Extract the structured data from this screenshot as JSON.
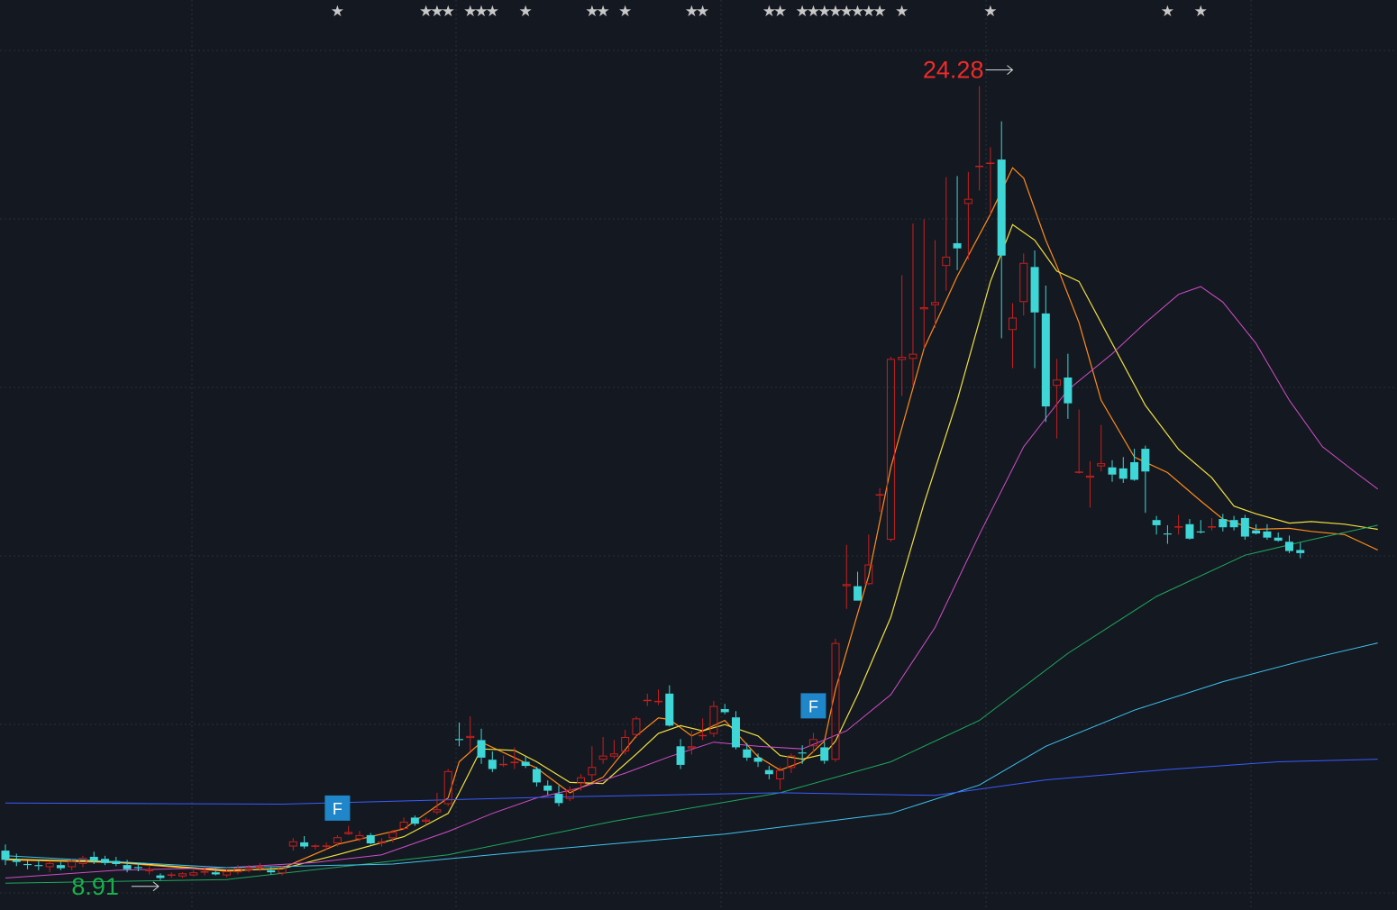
{
  "colors": {
    "background": "#141820",
    "grid": "#2a2f38",
    "up": "#c8201e",
    "down": "#3ed6d6",
    "star": "#c8c8c8",
    "high_label": "#ee2b2b",
    "low_label": "#19b04a",
    "marker_bg": "#1f86c9",
    "marker_text": "#ffffff",
    "ma5": "#ff8c1a",
    "ma10": "#f0e040",
    "ma20": "#d04ec8",
    "ma60": "#1ea85e",
    "ma120": "#3ec4f0",
    "ma250": "#3a5cff"
  },
  "labels": {
    "high": "24.28",
    "low": "8.91",
    "marker": "F"
  },
  "chart_data": {
    "type": "candlestick",
    "y_range": [
      8.4,
      25.6
    ],
    "high_annotation": {
      "index": 91,
      "value": 24.28,
      "text": "24.28"
    },
    "low_annotation": {
      "index": 14,
      "value": 8.91,
      "text": "8.91"
    },
    "event_markers": [
      {
        "index": 30,
        "text": "F"
      },
      {
        "index": 73,
        "text": "F"
      }
    ],
    "star_indices": [
      30,
      38,
      39,
      40,
      42,
      43,
      44,
      47,
      53,
      54,
      56,
      62,
      63,
      69,
      70,
      72,
      73,
      74,
      75,
      76,
      77,
      78,
      79,
      81,
      89,
      105,
      108
    ],
    "ohlc": [
      [
        9.48,
        9.6,
        9.2,
        9.3
      ],
      [
        9.3,
        9.42,
        9.18,
        9.26
      ],
      [
        9.22,
        9.3,
        9.12,
        9.2
      ],
      [
        9.2,
        9.3,
        9.1,
        9.18
      ],
      [
        9.16,
        9.28,
        9.06,
        9.24
      ],
      [
        9.2,
        9.26,
        9.1,
        9.14
      ],
      [
        9.16,
        9.32,
        9.1,
        9.28
      ],
      [
        9.22,
        9.38,
        9.16,
        9.34
      ],
      [
        9.36,
        9.46,
        9.22,
        9.28
      ],
      [
        9.32,
        9.38,
        9.2,
        9.24
      ],
      [
        9.28,
        9.36,
        9.18,
        9.22
      ],
      [
        9.2,
        9.3,
        9.06,
        9.12
      ],
      [
        9.16,
        9.24,
        9.08,
        9.14
      ],
      [
        9.08,
        9.2,
        9.02,
        9.12
      ],
      [
        9.0,
        9.04,
        8.91,
        8.95
      ],
      [
        9.0,
        9.06,
        8.95,
        9.02
      ],
      [
        8.98,
        9.06,
        8.95,
        9.04
      ],
      [
        9.0,
        9.1,
        8.98,
        9.06
      ],
      [
        9.06,
        9.16,
        9.0,
        9.08
      ],
      [
        9.06,
        9.14,
        9.0,
        9.02
      ],
      [
        9.0,
        9.12,
        8.96,
        9.08
      ],
      [
        9.06,
        9.2,
        9.02,
        9.14
      ],
      [
        9.1,
        9.2,
        9.06,
        9.16
      ],
      [
        9.14,
        9.24,
        9.08,
        9.18
      ],
      [
        9.1,
        9.16,
        9.02,
        9.06
      ],
      [
        9.04,
        9.18,
        9.0,
        9.16
      ],
      [
        9.56,
        9.72,
        9.48,
        9.66
      ],
      [
        9.64,
        9.76,
        9.52,
        9.56
      ],
      [
        9.56,
        9.6,
        9.5,
        9.58
      ],
      [
        9.58,
        9.64,
        9.5,
        9.58
      ],
      [
        9.62,
        9.78,
        9.56,
        9.74
      ],
      [
        9.8,
        9.96,
        9.78,
        9.84
      ],
      [
        9.7,
        9.86,
        9.66,
        9.78
      ],
      [
        9.78,
        9.82,
        9.6,
        9.62
      ],
      [
        9.62,
        9.72,
        9.56,
        9.66
      ],
      [
        9.72,
        9.88,
        9.64,
        9.84
      ],
      [
        9.9,
        10.12,
        9.88,
        10.04
      ],
      [
        10.12,
        10.16,
        9.96,
        10.0
      ],
      [
        10.04,
        10.12,
        9.98,
        10.08
      ],
      [
        10.22,
        10.6,
        10.18,
        10.28
      ],
      [
        10.38,
        11.06,
        10.34,
        11.02
      ],
      [
        11.64,
        11.96,
        11.5,
        11.62
      ],
      [
        11.66,
        12.08,
        11.4,
        11.7
      ],
      [
        11.62,
        11.84,
        11.16,
        11.28
      ],
      [
        11.24,
        11.4,
        11.0,
        11.06
      ],
      [
        11.16,
        11.32,
        11.1,
        11.16
      ],
      [
        11.18,
        11.48,
        11.06,
        11.2
      ],
      [
        11.2,
        11.3,
        11.08,
        11.12
      ],
      [
        11.06,
        11.1,
        10.72,
        10.8
      ],
      [
        10.74,
        10.84,
        10.56,
        10.64
      ],
      [
        10.58,
        10.74,
        10.34,
        10.4
      ],
      [
        10.48,
        10.72,
        10.44,
        10.66
      ],
      [
        10.78,
        10.96,
        10.64,
        10.9
      ],
      [
        10.94,
        11.5,
        10.8,
        11.1
      ],
      [
        11.24,
        11.68,
        11.16,
        11.32
      ],
      [
        11.3,
        11.62,
        11.26,
        11.36
      ],
      [
        11.4,
        11.82,
        11.34,
        11.68
      ],
      [
        11.72,
        12.08,
        11.66,
        12.04
      ],
      [
        12.4,
        12.52,
        12.28,
        12.4
      ],
      [
        12.38,
        12.6,
        12.3,
        12.38
      ],
      [
        12.52,
        12.68,
        11.88,
        11.9
      ],
      [
        11.5,
        11.64,
        11.06,
        11.14
      ],
      [
        11.46,
        11.8,
        11.34,
        11.5
      ],
      [
        11.72,
        12.04,
        11.62,
        11.72
      ],
      [
        11.74,
        12.38,
        11.68,
        12.28
      ],
      [
        12.22,
        12.32,
        12.12,
        12.16
      ],
      [
        12.06,
        12.18,
        11.44,
        11.48
      ],
      [
        11.44,
        11.56,
        11.22,
        11.28
      ],
      [
        11.28,
        11.36,
        11.1,
        11.2
      ],
      [
        11.04,
        11.12,
        10.86,
        10.96
      ],
      [
        10.86,
        11.1,
        10.66,
        11.04
      ],
      [
        11.08,
        11.36,
        10.98,
        11.32
      ],
      [
        11.38,
        11.52,
        11.16,
        11.36
      ],
      [
        11.5,
        11.76,
        11.38,
        11.64
      ],
      [
        11.48,
        11.58,
        11.16,
        11.22
      ],
      [
        11.24,
        13.58,
        11.2,
        13.5
      ],
      [
        14.6,
        15.4,
        14.16,
        14.64
      ],
      [
        14.6,
        14.88,
        14.32,
        14.32
      ],
      [
        14.64,
        15.6,
        14.62,
        15.02
      ],
      [
        16.38,
        16.5,
        16.04,
        16.38
      ],
      [
        15.5,
        19.04,
        15.46,
        19.0
      ],
      [
        18.98,
        20.62,
        18.28,
        19.04
      ],
      [
        19.0,
        21.62,
        18.48,
        19.1
      ],
      [
        19.96,
        21.7,
        19.2,
        20.0
      ],
      [
        20.04,
        21.3,
        19.6,
        20.1
      ],
      [
        20.8,
        22.52,
        20.32,
        20.98
      ],
      [
        21.24,
        22.54,
        20.72,
        21.14
      ],
      [
        22.0,
        22.62,
        20.92,
        22.1
      ],
      [
        22.74,
        24.28,
        22.26,
        22.74
      ],
      [
        22.78,
        23.1,
        21.8,
        22.8
      ],
      [
        22.86,
        23.6,
        19.4,
        21.0
      ],
      [
        19.56,
        20.08,
        18.82,
        19.8
      ],
      [
        20.1,
        21.04,
        19.84,
        20.86
      ],
      [
        20.78,
        21.1,
        18.82,
        19.9
      ],
      [
        19.88,
        20.42,
        17.78,
        18.08
      ],
      [
        18.48,
        19.0,
        17.46,
        18.6
      ],
      [
        18.64,
        19.1,
        17.84,
        18.14
      ],
      [
        16.82,
        18.02,
        16.78,
        16.82
      ],
      [
        16.7,
        17.02,
        16.12,
        16.74
      ],
      [
        16.92,
        17.72,
        16.82,
        16.98
      ],
      [
        16.9,
        17.04,
        16.62,
        16.76
      ],
      [
        16.88,
        17.1,
        16.6,
        16.68
      ],
      [
        17.0,
        17.26,
        16.64,
        16.66
      ],
      [
        17.26,
        17.32,
        16.02,
        16.82
      ],
      [
        15.88,
        15.96,
        15.6,
        15.78
      ],
      [
        15.62,
        15.78,
        15.42,
        15.6
      ],
      [
        15.74,
        15.98,
        15.6,
        15.76
      ],
      [
        15.8,
        15.9,
        15.5,
        15.52
      ],
      [
        15.66,
        15.88,
        15.62,
        15.64
      ],
      [
        15.76,
        15.92,
        15.68,
        15.76
      ],
      [
        15.9,
        16.0,
        15.66,
        15.74
      ],
      [
        15.88,
        15.96,
        15.68,
        15.74
      ],
      [
        15.92,
        15.98,
        15.5,
        15.56
      ],
      [
        15.68,
        15.8,
        15.6,
        15.62
      ],
      [
        15.66,
        15.8,
        15.5,
        15.54
      ],
      [
        15.54,
        15.64,
        15.46,
        15.48
      ],
      [
        15.46,
        15.58,
        15.24,
        15.28
      ],
      [
        15.3,
        15.44,
        15.14,
        15.24
      ]
    ],
    "ma_series": [
      {
        "name": "MA5",
        "color": "#ff8c1a",
        "width": 1.2,
        "points": [
          [
            0,
            9.3
          ],
          [
            10,
            9.25
          ],
          [
            20,
            9.08
          ],
          [
            25,
            9.14
          ],
          [
            30,
            9.6
          ],
          [
            36,
            9.9
          ],
          [
            40,
            10.5
          ],
          [
            41,
            11.2
          ],
          [
            43,
            11.58
          ],
          [
            45,
            11.38
          ],
          [
            48,
            11.08
          ],
          [
            51,
            10.6
          ],
          [
            54,
            10.9
          ],
          [
            57,
            11.7
          ],
          [
            59,
            12.05
          ],
          [
            60,
            12.02
          ],
          [
            62,
            11.7
          ],
          [
            65,
            12.0
          ],
          [
            68,
            11.3
          ],
          [
            70,
            11.04
          ],
          [
            72,
            11.2
          ],
          [
            74,
            11.6
          ],
          [
            75,
            12.6
          ],
          [
            78,
            14.8
          ],
          [
            80,
            16.9
          ],
          [
            83,
            19.2
          ],
          [
            86,
            20.6
          ],
          [
            89,
            21.8
          ],
          [
            91,
            22.7
          ],
          [
            92,
            22.5
          ],
          [
            94,
            21.3
          ],
          [
            95,
            20.8
          ],
          [
            97,
            19.7
          ],
          [
            99,
            18.2
          ],
          [
            102,
            17.1
          ],
          [
            105,
            16.8
          ],
          [
            108,
            16.25
          ],
          [
            110,
            15.9
          ],
          [
            113,
            15.7
          ],
          [
            116,
            15.72
          ],
          [
            118,
            15.66
          ],
          [
            121,
            15.6
          ],
          [
            124,
            15.3
          ]
        ]
      },
      {
        "name": "MA10",
        "color": "#f0e040",
        "width": 1.2,
        "points": [
          [
            0,
            9.32
          ],
          [
            10,
            9.26
          ],
          [
            20,
            9.1
          ],
          [
            25,
            9.13
          ],
          [
            30,
            9.4
          ],
          [
            36,
            9.75
          ],
          [
            40,
            10.2
          ],
          [
            41,
            10.6
          ],
          [
            43,
            11.45
          ],
          [
            46,
            11.42
          ],
          [
            48,
            11.2
          ],
          [
            51,
            10.8
          ],
          [
            54,
            10.78
          ],
          [
            57,
            11.35
          ],
          [
            59,
            11.75
          ],
          [
            61,
            11.9
          ],
          [
            63,
            11.8
          ],
          [
            65,
            11.92
          ],
          [
            68,
            11.7
          ],
          [
            70,
            11.32
          ],
          [
            72,
            11.25
          ],
          [
            74,
            11.35
          ],
          [
            75,
            11.6
          ],
          [
            77,
            12.5
          ],
          [
            80,
            14.0
          ],
          [
            83,
            16.2
          ],
          [
            86,
            18.2
          ],
          [
            89,
            20.5
          ],
          [
            91,
            21.6
          ],
          [
            93,
            21.3
          ],
          [
            95,
            20.7
          ],
          [
            97,
            20.5
          ],
          [
            100,
            19.3
          ],
          [
            103,
            18.1
          ],
          [
            106,
            17.25
          ],
          [
            109,
            16.7
          ],
          [
            111,
            16.15
          ],
          [
            113,
            16.0
          ],
          [
            116,
            15.82
          ],
          [
            118,
            15.85
          ],
          [
            121,
            15.8
          ],
          [
            124,
            15.7
          ]
        ]
      },
      {
        "name": "MA20",
        "color": "#d04ec8",
        "width": 1.0,
        "points": [
          [
            0,
            8.95
          ],
          [
            10,
            9.1
          ],
          [
            20,
            9.15
          ],
          [
            28,
            9.25
          ],
          [
            34,
            9.4
          ],
          [
            40,
            9.85
          ],
          [
            44,
            10.2
          ],
          [
            48,
            10.5
          ],
          [
            52,
            10.7
          ],
          [
            56,
            10.98
          ],
          [
            60,
            11.3
          ],
          [
            64,
            11.58
          ],
          [
            68,
            11.5
          ],
          [
            72,
            11.45
          ],
          [
            76,
            11.8
          ],
          [
            80,
            12.5
          ],
          [
            84,
            13.8
          ],
          [
            88,
            15.6
          ],
          [
            92,
            17.3
          ],
          [
            96,
            18.4
          ],
          [
            100,
            19.1
          ],
          [
            103,
            19.7
          ],
          [
            106,
            20.25
          ],
          [
            108,
            20.4
          ],
          [
            110,
            20.1
          ],
          [
            113,
            19.3
          ],
          [
            116,
            18.2
          ],
          [
            119,
            17.3
          ],
          [
            122,
            16.8
          ],
          [
            124,
            16.48
          ]
        ]
      },
      {
        "name": "MA60",
        "color": "#1ea85e",
        "width": 1.0,
        "points": [
          [
            0,
            8.85
          ],
          [
            20,
            8.92
          ],
          [
            40,
            9.4
          ],
          [
            55,
            10.05
          ],
          [
            70,
            10.6
          ],
          [
            80,
            11.2
          ],
          [
            88,
            12.0
          ],
          [
            96,
            13.3
          ],
          [
            104,
            14.4
          ],
          [
            112,
            15.2
          ],
          [
            118,
            15.5
          ],
          [
            124,
            15.78
          ]
        ]
      },
      {
        "name": "MA120",
        "color": "#3ec4f0",
        "width": 1.0,
        "points": [
          [
            0,
            9.38
          ],
          [
            20,
            9.15
          ],
          [
            35,
            9.22
          ],
          [
            50,
            9.52
          ],
          [
            65,
            9.8
          ],
          [
            80,
            10.2
          ],
          [
            88,
            10.75
          ],
          [
            94,
            11.5
          ],
          [
            102,
            12.2
          ],
          [
            110,
            12.75
          ],
          [
            118,
            13.2
          ],
          [
            124,
            13.5
          ]
        ]
      },
      {
        "name": "MA250",
        "color": "#3a5cff",
        "width": 1.0,
        "points": [
          [
            0,
            10.4
          ],
          [
            25,
            10.38
          ],
          [
            50,
            10.52
          ],
          [
            70,
            10.6
          ],
          [
            84,
            10.55
          ],
          [
            94,
            10.85
          ],
          [
            105,
            11.05
          ],
          [
            115,
            11.2
          ],
          [
            124,
            11.25
          ]
        ]
      }
    ]
  }
}
